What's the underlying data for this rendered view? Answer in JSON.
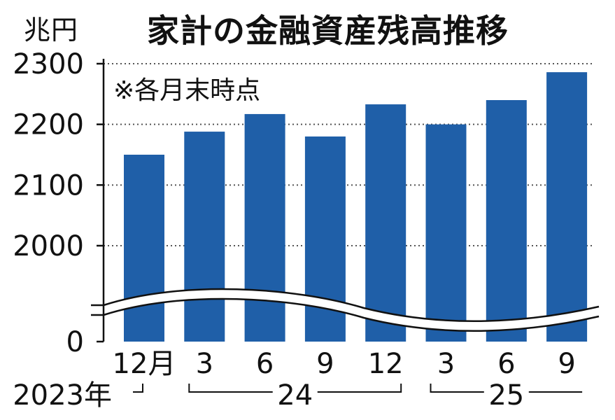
{
  "header": {
    "unit": "兆円",
    "title": "家計の金融資産残高推移",
    "note": "※各月末時点"
  },
  "chart_data": {
    "type": "bar",
    "title": "家計の金融資産残高推移",
    "ylabel": "兆円",
    "ylim": [
      0,
      2300
    ],
    "y_axis_break": true,
    "yticks": [
      "2300",
      "2200",
      "2100",
      "2000",
      "0"
    ],
    "categories": [
      "12月",
      "3",
      "6",
      "9",
      "12",
      "3",
      "6",
      "9"
    ],
    "values": [
      2150,
      2188,
      2217,
      2180,
      2233,
      2200,
      2240,
      2286
    ],
    "year_groups": [
      {
        "label": "2023年",
        "count": 1
      },
      {
        "label": "24",
        "count": 4
      },
      {
        "label": "25",
        "count": 3
      }
    ],
    "bar_color": "#1f5fa8",
    "grid": "dotted horizontal"
  }
}
